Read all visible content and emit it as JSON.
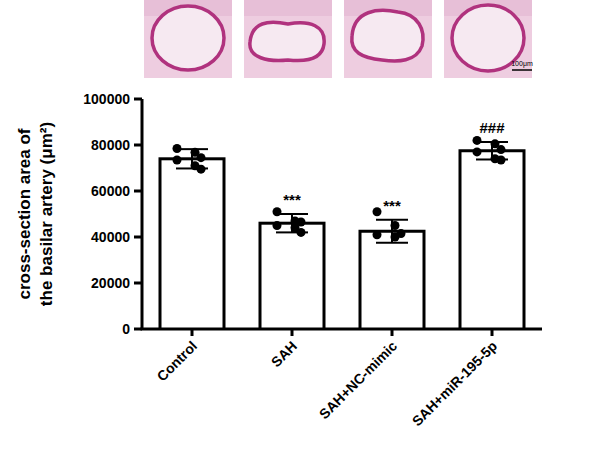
{
  "chart_data": {
    "type": "bar",
    "ylabel": [
      "cross-section area of",
      "the basilar artery (μm²)"
    ],
    "categories": [
      "Control",
      "SAH",
      "SAH+NC-mimic",
      "SAH+miR-195-5p"
    ],
    "values": [
      74000,
      46000,
      42500,
      77500
    ],
    "errors": [
      4200,
      4000,
      5000,
      3800
    ],
    "points": [
      [
        78500,
        76800,
        74500,
        73500,
        71000,
        69500
      ],
      [
        51000,
        47000,
        46500,
        45000,
        44000,
        42000
      ],
      [
        51000,
        45000,
        41500,
        41000,
        40000
      ],
      [
        82000,
        80500,
        78000,
        77000,
        74000,
        73500
      ]
    ],
    "annotations": [
      {
        "category": "SAH",
        "text": "***"
      },
      {
        "category": "SAH+NC-mimic",
        "text": "***"
      },
      {
        "category": "SAH+miR-195-5p",
        "text": "###"
      }
    ],
    "scale_bar": "100μm",
    "color": "#000000",
    "ylim": [
      0,
      100000
    ],
    "yticks": [
      0,
      20000,
      40000,
      60000,
      80000,
      100000
    ],
    "grid": false
  }
}
